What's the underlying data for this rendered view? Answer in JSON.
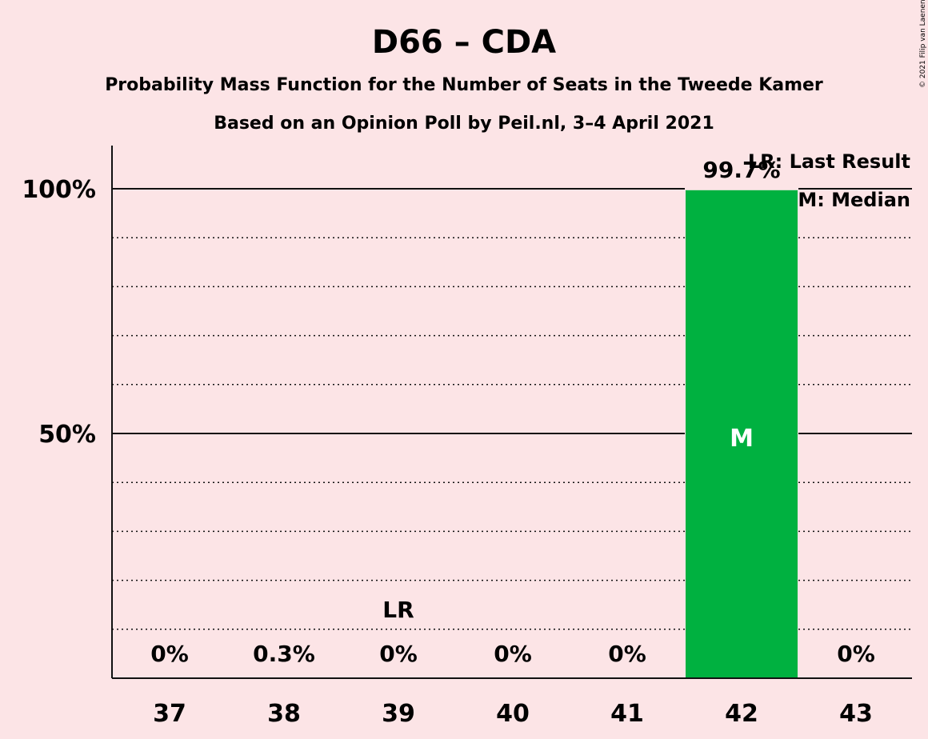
{
  "title": "D66 – CDA",
  "subtitle1": "Probability Mass Function for the Number of Seats in the Tweede Kamer",
  "subtitle2": "Based on an Opinion Poll by Peil.nl, 3–4 April 2021",
  "copyright": "© 2021 Filip van Laenen",
  "legend": {
    "last_result": "LR: Last Result",
    "median": "M: Median"
  },
  "colors": {
    "background": "#fce4e6",
    "bar": "#00b140",
    "text": "#111111"
  },
  "chart_data": {
    "type": "bar",
    "categories": [
      "37",
      "38",
      "39",
      "40",
      "41",
      "42",
      "43"
    ],
    "values": [
      0,
      0.3,
      0,
      0,
      0,
      99.7,
      0
    ],
    "labels": [
      "0%",
      "0.3%",
      "0%",
      "0%",
      "0%",
      "99.7%",
      "0%"
    ],
    "ylim": [
      0,
      110
    ],
    "yticks": [
      50,
      100
    ],
    "ytick_labels": [
      "50%",
      "100%"
    ],
    "minor_grid": [
      10,
      20,
      30,
      40,
      60,
      70,
      80,
      90
    ],
    "last_result": "39",
    "last_result_mark": "LR",
    "median": "42",
    "median_mark": "M",
    "legend_position": "top-right"
  }
}
